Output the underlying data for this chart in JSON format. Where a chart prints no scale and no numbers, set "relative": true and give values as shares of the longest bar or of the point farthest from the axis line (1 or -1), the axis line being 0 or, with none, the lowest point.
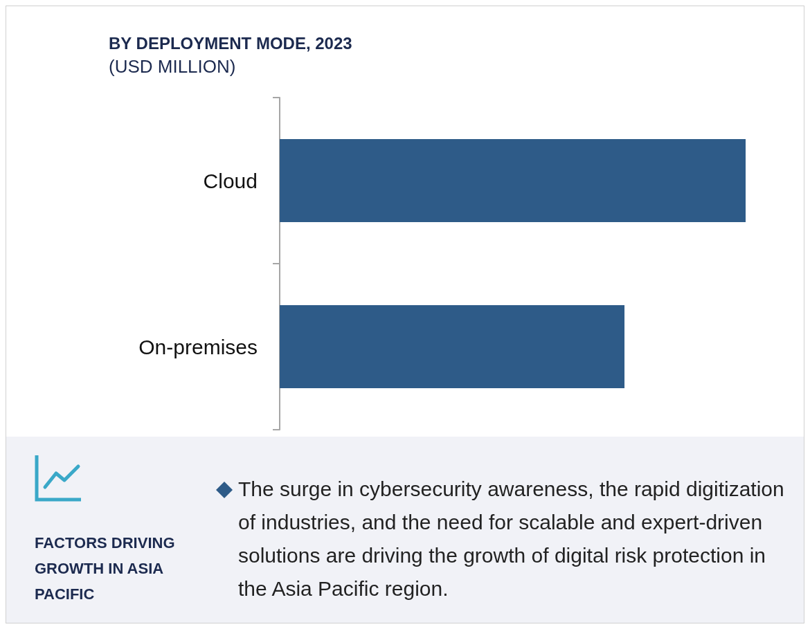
{
  "chart_data": {
    "type": "bar",
    "orientation": "horizontal",
    "relative": true,
    "title": "BY DEPLOYMENT MODE, 2023",
    "subtitle": "(USD MILLION)",
    "categories": [
      "Cloud",
      "On-premises"
    ],
    "values": [
      1,
      0.74
    ],
    "color": "#2e5b88",
    "annotations": [
      "FACTORS DRIVING GROWTH IN ASIA PACIFIC",
      "The surge in cybersecurity awareness, the rapid digitization of industries, and the need for scalable and expert-driven solutions are driving the growth of digital risk protection in the Asia Pacific region."
    ]
  }
}
